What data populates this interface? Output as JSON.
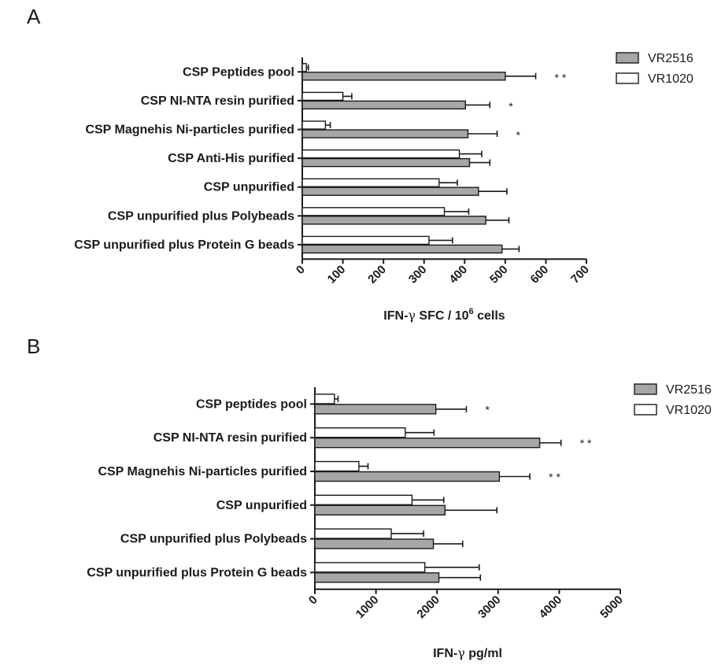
{
  "chart_data": [
    {
      "type": "bar",
      "orientation": "horizontal",
      "panel_label": "A",
      "title": "",
      "xlabel_prefix": "IFN-",
      "xlabel_greek": "γ",
      "xlabel_mid": " SFC / 10",
      "xlabel_sup": "6",
      "xlabel_suffix": " cells",
      "xlim": [
        0,
        700
      ],
      "xticks": [
        "0",
        "100",
        "200",
        "300",
        "400",
        "500",
        "600",
        "700"
      ],
      "categories": [
        "CSP Peptides pool",
        "CSP NI-NTA resin purified",
        "CSP Magnehis Ni-particles purified",
        "CSP Anti-His purified",
        "CSP unpurified",
        "CSP unpurified plus Polybeads",
        "CSP unpurified plus Protein G beads"
      ],
      "series": [
        {
          "name": "VR2516",
          "color": "#a6a6a6",
          "values": [
            500,
            402,
            408,
            412,
            434,
            452,
            492
          ],
          "errors": [
            75,
            60,
            72,
            50,
            70,
            57,
            42
          ]
        },
        {
          "name": "VR1020",
          "color": "#ffffff",
          "values": [
            10,
            100,
            57,
            387,
            337,
            350,
            312
          ],
          "errors": [
            5,
            22,
            12,
            55,
            45,
            60,
            58
          ]
        }
      ],
      "significance": [
        "* *",
        "*",
        "*",
        "",
        "",
        "",
        ""
      ],
      "legend": "top-right"
    },
    {
      "type": "bar",
      "orientation": "horizontal",
      "panel_label": "B",
      "title": "",
      "xlabel_prefix": "IFN-",
      "xlabel_greek": "γ",
      "xlabel_mid": " pg/ml",
      "xlabel_sup": "",
      "xlabel_suffix": "",
      "xlim": [
        0,
        5000
      ],
      "xticks": [
        "0",
        "1000",
        "2000",
        "3000",
        "4000",
        "5000"
      ],
      "categories": [
        "CSP peptides pool",
        "CSP NI-NTA resin purified",
        "CSP Magnehis Ni-particles purified",
        "CSP unpurified",
        "CSP unpurified plus Polybeads",
        "CSP unpurified plus Protein G beads"
      ],
      "series": [
        {
          "name": "VR2516",
          "color": "#a6a6a6",
          "values": [
            1980,
            3680,
            3020,
            2130,
            1940,
            2030
          ],
          "errors": [
            500,
            350,
            500,
            850,
            480,
            680
          ]
        },
        {
          "name": "VR1020",
          "color": "#ffffff",
          "values": [
            320,
            1480,
            720,
            1590,
            1250,
            1800
          ],
          "errors": [
            60,
            470,
            150,
            520,
            530,
            890
          ]
        }
      ],
      "significance": [
        "*",
        "* *",
        "* *",
        "",
        "",
        ""
      ],
      "legend": "top-right"
    }
  ]
}
